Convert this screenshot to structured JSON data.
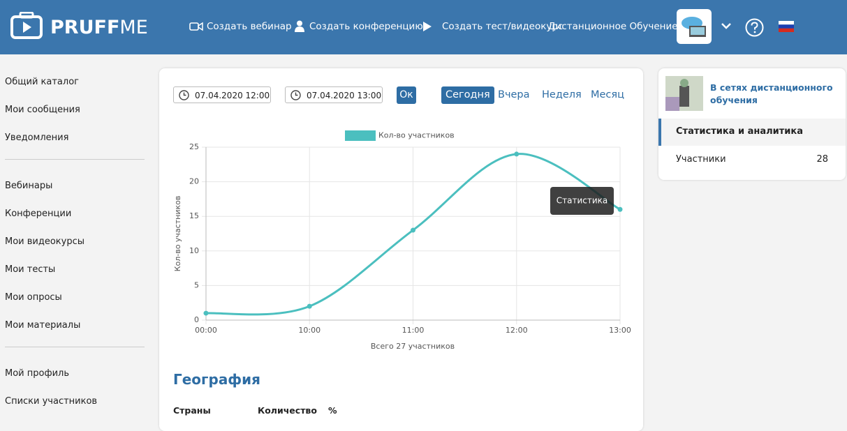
{
  "header": {
    "logo": [
      "PRUFF",
      "ME"
    ],
    "nav": [
      "Создать вебинар",
      "Создать конференцию",
      "Создать тест/видеокурс",
      "Дистанционное Обучение"
    ]
  },
  "sidebar": {
    "groups": [
      [
        "Общий каталог",
        "Мои сообщения",
        "Уведомления"
      ],
      [
        "Вебинары",
        "Конференции",
        "Мои видеокурсы",
        "Мои тесты",
        "Мои опросы",
        "Мои материалы"
      ],
      [
        "Мой профиль",
        "Списки участников"
      ]
    ]
  },
  "filters": {
    "date_from": "07.04.2020 12:00",
    "date_to": "07.04.2020 13:00",
    "submit": "Ок",
    "periods": [
      "Сегодня",
      "Вчера",
      "Неделя",
      "Месяц"
    ]
  },
  "chart_data": {
    "type": "line",
    "categories": [
      "00:00",
      "10:00",
      "11:00",
      "12:00",
      "13:00"
    ],
    "series": [
      {
        "name": "Кол-во участников",
        "color": "#4bbfbf",
        "values": [
          1,
          2,
          13,
          24,
          16
        ]
      }
    ],
    "y_label": "Кол-во участников",
    "x_label": "Всего 27 участников",
    "annotation": "Статистика",
    "ylim": [
      0,
      25
    ],
    "yticks": [
      0,
      5,
      10,
      15,
      20,
      25
    ],
    "grid": true,
    "legend": "top"
  },
  "geography": {
    "title": "География",
    "columns": [
      "Страны",
      "Количество",
      "%"
    ]
  },
  "panel": {
    "title": "В сетях дистанционного обучения",
    "section": "Статистика и аналитика",
    "rows": [
      {
        "label": "Участники",
        "value": 28
      }
    ]
  }
}
